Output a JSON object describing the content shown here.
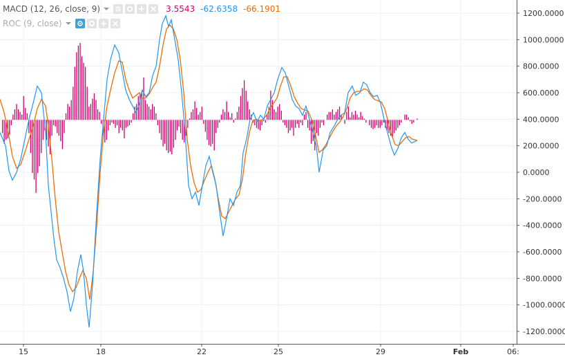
{
  "legend": {
    "macd": {
      "label": "MACD (12, 26, close, 9)",
      "histogram": "3.5543",
      "macd": "-62.6358",
      "signal": "-66.1901"
    },
    "roc": {
      "label": "ROC (9, close)"
    }
  },
  "colors": {
    "histogram": "#d0006f",
    "macd": "#2196f3",
    "signal": "#ef6c00",
    "grid": "#ecf1f4",
    "axis": "#555555"
  },
  "icons": [
    "eye-icon",
    "settings-icon",
    "plus-icon",
    "close-icon"
  ],
  "chart_data": {
    "type": "line",
    "title": "",
    "ylim": [
      -1250,
      1260
    ],
    "y_ticks": [
      "1200.0000",
      "1000.0000",
      "800.0000",
      "600.0000",
      "400.0000",
      "200.0000",
      "0.0000",
      "-200.0000",
      "-400.0000",
      "-600.0000",
      "-800.0000",
      "-1000.0000",
      "-1200.0000"
    ],
    "x_ticks": [
      "15",
      "18",
      "22",
      "25",
      "29",
      "Feb",
      "06:"
    ],
    "baseline": 395,
    "series": [
      {
        "role": "macd",
        "points": [
          [
            0,
            300
          ],
          [
            8,
            200
          ],
          [
            13,
            10
          ],
          [
            18,
            -60
          ],
          [
            24,
            0
          ],
          [
            30,
            100
          ],
          [
            36,
            250
          ],
          [
            42,
            400
          ],
          [
            47,
            500
          ],
          [
            54,
            650
          ],
          [
            60,
            600
          ],
          [
            66,
            300
          ],
          [
            70,
            -100
          ],
          [
            74,
            -300
          ],
          [
            78,
            -500
          ],
          [
            82,
            -660
          ],
          [
            87,
            -720
          ],
          [
            92,
            -800
          ],
          [
            97,
            -900
          ],
          [
            102,
            -1050
          ],
          [
            107,
            -950
          ],
          [
            112,
            -750
          ],
          [
            117,
            -620
          ],
          [
            121,
            -750
          ],
          [
            125,
            -1000
          ],
          [
            129,
            -1170
          ],
          [
            134,
            -850
          ],
          [
            140,
            -300
          ],
          [
            145,
            100
          ],
          [
            150,
            400
          ],
          [
            155,
            700
          ],
          [
            160,
            850
          ],
          [
            166,
            960
          ],
          [
            172,
            900
          ],
          [
            177,
            760
          ],
          [
            182,
            620
          ],
          [
            187,
            550
          ],
          [
            192,
            500
          ],
          [
            197,
            450
          ],
          [
            202,
            520
          ],
          [
            206,
            620
          ],
          [
            211,
            570
          ],
          [
            216,
            600
          ],
          [
            221,
            730
          ],
          [
            226,
            800
          ],
          [
            231,
            1000
          ],
          [
            235,
            1120
          ],
          [
            240,
            1180
          ],
          [
            244,
            1100
          ],
          [
            248,
            1150
          ],
          [
            253,
            1000
          ],
          [
            258,
            850
          ],
          [
            263,
            600
          ],
          [
            268,
            300
          ],
          [
            273,
            -100
          ],
          [
            278,
            -200
          ],
          [
            283,
            -150
          ],
          [
            288,
            -250
          ],
          [
            293,
            -100
          ],
          [
            298,
            50
          ],
          [
            303,
            120
          ],
          [
            308,
            0
          ],
          [
            313,
            -100
          ],
          [
            318,
            -300
          ],
          [
            323,
            -480
          ],
          [
            328,
            -350
          ],
          [
            333,
            -200
          ],
          [
            338,
            -250
          ],
          [
            343,
            -150
          ],
          [
            348,
            -100
          ],
          [
            352,
            150
          ],
          [
            357,
            250
          ],
          [
            362,
            400
          ],
          [
            367,
            450
          ],
          [
            372,
            380
          ],
          [
            377,
            430
          ],
          [
            382,
            400
          ],
          [
            387,
            500
          ],
          [
            392,
            550
          ],
          [
            397,
            600
          ],
          [
            402,
            700
          ],
          [
            408,
            790
          ],
          [
            413,
            750
          ],
          [
            418,
            650
          ],
          [
            423,
            550
          ],
          [
            428,
            500
          ],
          [
            433,
            480
          ],
          [
            438,
            430
          ],
          [
            443,
            500
          ],
          [
            448,
            400
          ],
          [
            453,
            300
          ],
          [
            458,
            200
          ],
          [
            462,
            0
          ],
          [
            468,
            170
          ],
          [
            473,
            200
          ],
          [
            478,
            300
          ],
          [
            484,
            350
          ],
          [
            489,
            400
          ],
          [
            494,
            430
          ],
          [
            499,
            450
          ],
          [
            504,
            600
          ],
          [
            510,
            650
          ],
          [
            515,
            580
          ],
          [
            521,
            600
          ],
          [
            526,
            680
          ],
          [
            531,
            660
          ],
          [
            536,
            600
          ],
          [
            541,
            570
          ],
          [
            546,
            580
          ],
          [
            551,
            520
          ],
          [
            556,
            400
          ],
          [
            561,
            300
          ],
          [
            566,
            200
          ],
          [
            571,
            130
          ],
          [
            576,
            180
          ],
          [
            581,
            260
          ],
          [
            586,
            300
          ],
          [
            591,
            250
          ],
          [
            596,
            220
          ],
          [
            600,
            230
          ],
          [
            604,
            240
          ]
        ]
      },
      {
        "role": "signal",
        "points": [
          [
            0,
            550
          ],
          [
            6,
            450
          ],
          [
            12,
            300
          ],
          [
            18,
            120
          ],
          [
            24,
            30
          ],
          [
            30,
            60
          ],
          [
            36,
            150
          ],
          [
            42,
            250
          ],
          [
            48,
            350
          ],
          [
            54,
            480
          ],
          [
            60,
            550
          ],
          [
            66,
            500
          ],
          [
            70,
            350
          ],
          [
            75,
            100
          ],
          [
            80,
            -200
          ],
          [
            85,
            -450
          ],
          [
            90,
            -600
          ],
          [
            95,
            -750
          ],
          [
            100,
            -850
          ],
          [
            105,
            -900
          ],
          [
            110,
            -870
          ],
          [
            115,
            -800
          ],
          [
            120,
            -740
          ],
          [
            125,
            -800
          ],
          [
            130,
            -960
          ],
          [
            135,
            -750
          ],
          [
            140,
            -400
          ],
          [
            145,
            0
          ],
          [
            150,
            300
          ],
          [
            155,
            500
          ],
          [
            160,
            620
          ],
          [
            166,
            750
          ],
          [
            172,
            840
          ],
          [
            177,
            830
          ],
          [
            182,
            700
          ],
          [
            187,
            620
          ],
          [
            192,
            560
          ],
          [
            197,
            580
          ],
          [
            202,
            600
          ],
          [
            206,
            560
          ],
          [
            211,
            560
          ],
          [
            216,
            590
          ],
          [
            221,
            640
          ],
          [
            226,
            680
          ],
          [
            231,
            800
          ],
          [
            236,
            960
          ],
          [
            241,
            1080
          ],
          [
            246,
            1110
          ],
          [
            251,
            1080
          ],
          [
            256,
            1000
          ],
          [
            261,
            850
          ],
          [
            266,
            600
          ],
          [
            271,
            250
          ],
          [
            276,
            50
          ],
          [
            281,
            -80
          ],
          [
            286,
            -150
          ],
          [
            291,
            -130
          ],
          [
            296,
            -60
          ],
          [
            301,
            0
          ],
          [
            306,
            50
          ],
          [
            311,
            -50
          ],
          [
            316,
            -200
          ],
          [
            321,
            -330
          ],
          [
            326,
            -350
          ],
          [
            331,
            -300
          ],
          [
            336,
            -250
          ],
          [
            341,
            -200
          ],
          [
            346,
            -170
          ],
          [
            351,
            -50
          ],
          [
            356,
            150
          ],
          [
            361,
            300
          ],
          [
            366,
            390
          ],
          [
            371,
            400
          ],
          [
            376,
            390
          ],
          [
            381,
            400
          ],
          [
            386,
            430
          ],
          [
            391,
            480
          ],
          [
            396,
            520
          ],
          [
            401,
            560
          ],
          [
            406,
            650
          ],
          [
            411,
            720
          ],
          [
            416,
            720
          ],
          [
            421,
            650
          ],
          [
            426,
            570
          ],
          [
            431,
            520
          ],
          [
            436,
            480
          ],
          [
            441,
            470
          ],
          [
            446,
            460
          ],
          [
            451,
            400
          ],
          [
            456,
            300
          ],
          [
            462,
            150
          ],
          [
            467,
            170
          ],
          [
            472,
            210
          ],
          [
            477,
            260
          ],
          [
            482,
            310
          ],
          [
            487,
            350
          ],
          [
            492,
            380
          ],
          [
            497,
            420
          ],
          [
            502,
            480
          ],
          [
            507,
            560
          ],
          [
            512,
            600
          ],
          [
            517,
            610
          ],
          [
            522,
            610
          ],
          [
            527,
            630
          ],
          [
            532,
            620
          ],
          [
            537,
            580
          ],
          [
            542,
            550
          ],
          [
            547,
            540
          ],
          [
            552,
            530
          ],
          [
            557,
            480
          ],
          [
            562,
            380
          ],
          [
            567,
            280
          ],
          [
            572,
            210
          ],
          [
            577,
            200
          ],
          [
            582,
            230
          ],
          [
            587,
            260
          ],
          [
            592,
            270
          ],
          [
            597,
            250
          ],
          [
            604,
            240
          ]
        ]
      },
      {
        "role": "histogram",
        "values": [
          0,
          -100,
          -180,
          -150,
          -140,
          -110,
          -40,
          40,
          80,
          120,
          80,
          60,
          40,
          180,
          90,
          50,
          -100,
          -250,
          -400,
          -450,
          -550,
          -400,
          -350,
          -250,
          -150,
          -80,
          -150,
          -200,
          -260,
          -120,
          -40,
          -50,
          -100,
          -120,
          -160,
          -220,
          -100,
          50,
          120,
          100,
          150,
          250,
          400,
          510,
          560,
          580,
          480,
          430,
          400,
          250,
          100,
          120,
          160,
          200,
          150,
          80,
          60,
          -30,
          -120,
          -170,
          -150,
          -80,
          -40,
          -20,
          -30,
          -60,
          -40,
          -100,
          -60,
          -80,
          -140,
          -60,
          -50,
          -40,
          -20,
          50,
          100,
          120,
          180,
          200,
          220,
          320,
          150,
          120,
          100,
          80,
          120,
          100,
          50,
          -40,
          -100,
          -150,
          -200,
          -180,
          -230,
          -250,
          -240,
          -260,
          -210,
          -150,
          -80,
          -50,
          -100,
          -150,
          -170,
          -120,
          -60,
          10,
          60,
          80,
          140,
          90,
          40,
          60,
          100,
          -30,
          -90,
          -150,
          -190,
          -200,
          -180,
          -230,
          -100,
          -60,
          -20,
          40,
          80,
          60,
          140,
          60,
          20,
          50,
          -20,
          10,
          60,
          100,
          180,
          240,
          300,
          220,
          140,
          80,
          40,
          -20,
          -40,
          -60,
          -70,
          -80,
          -40,
          -10,
          -20,
          40,
          100,
          220,
          150,
          80,
          60,
          100,
          120,
          70,
          -20,
          -40,
          -60,
          -100,
          -80,
          -60,
          -120,
          -60,
          -30,
          -60,
          -20,
          -40,
          40,
          60,
          -60,
          -80,
          -180,
          -160,
          -230,
          -100,
          -120,
          -60,
          -20,
          -40,
          0,
          40,
          60,
          60,
          80,
          40,
          60,
          80,
          100,
          40,
          0,
          -30,
          60,
          100,
          20,
          60,
          40,
          70,
          40,
          20,
          60,
          30,
          10,
          -20,
          0,
          -40,
          -60,
          -70,
          -60,
          -40,
          -60,
          -60,
          -40,
          -20,
          -60,
          -80,
          -100,
          -120,
          -130,
          -100,
          -80,
          -60,
          -40,
          -20,
          0,
          40,
          40,
          20,
          -10,
          -30,
          -20,
          0,
          10
        ]
      }
    ]
  }
}
